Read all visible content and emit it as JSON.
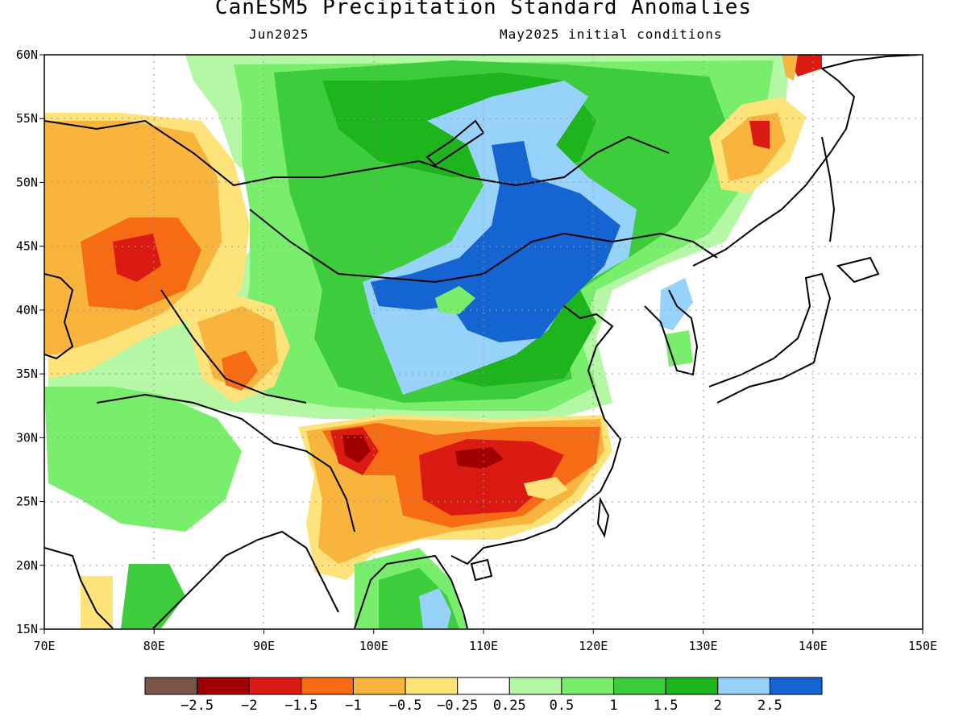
{
  "title": "CanESM5 Precipitation Standard Anomalies",
  "subtitle_left": "Jun2025",
  "subtitle_right": "May2025 initial conditions",
  "map": {
    "lon_range": [
      70,
      150
    ],
    "lat_range": [
      15,
      60
    ],
    "lon_ticks": [
      "70E",
      "80E",
      "90E",
      "100E",
      "110E",
      "120E",
      "130E",
      "140E",
      "150E"
    ],
    "lat_ticks": [
      "15N",
      "20N",
      "25N",
      "30N",
      "35N",
      "40N",
      "45N",
      "50N",
      "55N",
      "60N"
    ],
    "gridlines": "dotted"
  },
  "colorbar": {
    "colors": [
      "#7a5548",
      "#a00000",
      "#dc1a14",
      "#f76b14",
      "#f8b43c",
      "#fde37a",
      "#ffffff",
      "#b4f7a4",
      "#78ee6c",
      "#3ccc3c",
      "#1eb41e",
      "#96d2fa",
      "#1464d2"
    ],
    "labels": [
      "−2.5",
      "−2",
      "−1.5",
      "−1",
      "−0.5",
      "−0.25",
      "0.25",
      "0.5",
      "1",
      "1.5",
      "2",
      "2.5"
    ]
  },
  "anomaly_regions": [
    {
      "name": "northern-china-mongolia-wet",
      "level": 2.5,
      "color": "#1464d2"
    },
    {
      "name": "southern-china-dry",
      "level": -2,
      "color": "#a00000"
    },
    {
      "name": "kazakhstan-dry",
      "level": -1.5,
      "color": "#dc1a14"
    },
    {
      "name": "tarim-basin-dry",
      "level": -1,
      "color": "#f76b14"
    },
    {
      "name": "russian-far-east-dry",
      "level": -1.5,
      "color": "#dc1a14"
    },
    {
      "name": "south-siberia-wet",
      "level": 1.5,
      "color": "#3ccc3c"
    }
  ]
}
